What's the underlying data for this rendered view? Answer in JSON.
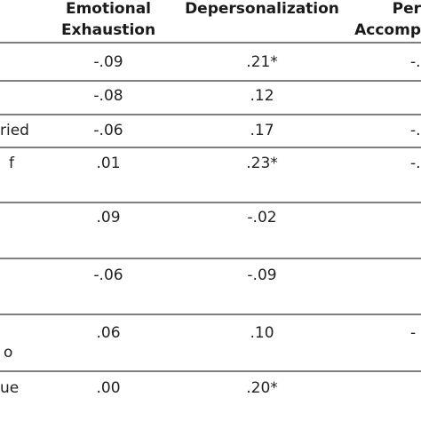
{
  "table": {
    "header": [
      [
        "Emotional",
        "Exhaustion"
      ],
      [
        "Depersonalization"
      ],
      [
        "Per",
        "Accomp"
      ]
    ],
    "rows": [
      {
        "label": null,
        "cells": [
          "-.09",
          ".21*",
          "-."
        ]
      },
      {
        "label": null,
        "cells": [
          "-.08",
          ".12",
          null
        ]
      },
      {
        "label": "ried",
        "cells": [
          "-.06",
          ".17",
          "-."
        ]
      },
      {
        "label": "f",
        "cells": [
          ".01",
          ".23*",
          "-."
        ]
      },
      {
        "label": null,
        "cells": [
          ".09",
          "-.02",
          null
        ]
      },
      {
        "label": null,
        "cells": [
          "-.06",
          "-.09",
          null
        ]
      },
      {
        "label": "o",
        "cells": [
          ".06",
          ".10",
          "-"
        ]
      },
      {
        "label": "ue",
        "cells": [
          ".00",
          ".20*",
          null
        ]
      }
    ]
  }
}
